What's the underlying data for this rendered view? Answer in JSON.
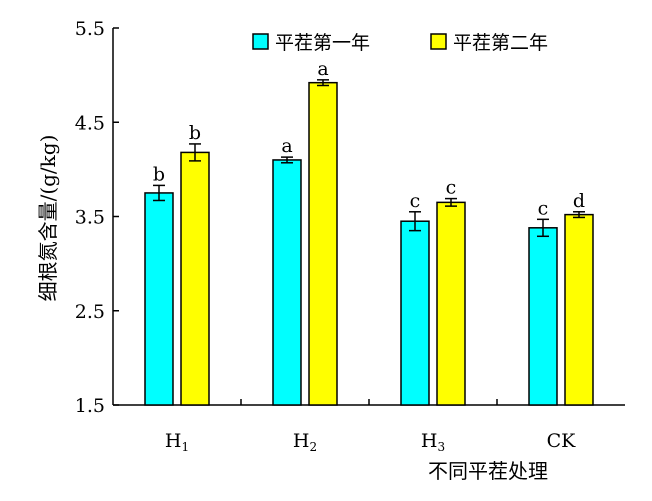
{
  "chart_data": {
    "type": "bar",
    "title": "",
    "xlabel": "不同平茬处理",
    "ylabel": "细根氮含量/(g/kg)",
    "ylim": [
      1.5,
      5.5
    ],
    "yticks": [
      "1.5",
      "2.5",
      "3.5",
      "4.5",
      "5.5"
    ],
    "categories": [
      {
        "base": "H",
        "sub": "1"
      },
      {
        "base": "H",
        "sub": "2"
      },
      {
        "base": "H",
        "sub": "3"
      },
      {
        "base": "CK",
        "sub": ""
      }
    ],
    "series": [
      {
        "name": "平茬第一年",
        "color": "#00ffff",
        "values": [
          3.75,
          4.1,
          3.45,
          3.38
        ],
        "errors": [
          0.08,
          0.03,
          0.1,
          0.09
        ],
        "letters": [
          "b",
          "a",
          "c",
          "c"
        ]
      },
      {
        "name": "平茬第二年",
        "color": "#ffff00",
        "values": [
          4.18,
          4.92,
          3.65,
          3.52
        ],
        "errors": [
          0.09,
          0.03,
          0.04,
          0.03
        ],
        "letters": [
          "b",
          "a",
          "c",
          "d"
        ]
      }
    ],
    "grid": false,
    "legend_position": "top"
  }
}
